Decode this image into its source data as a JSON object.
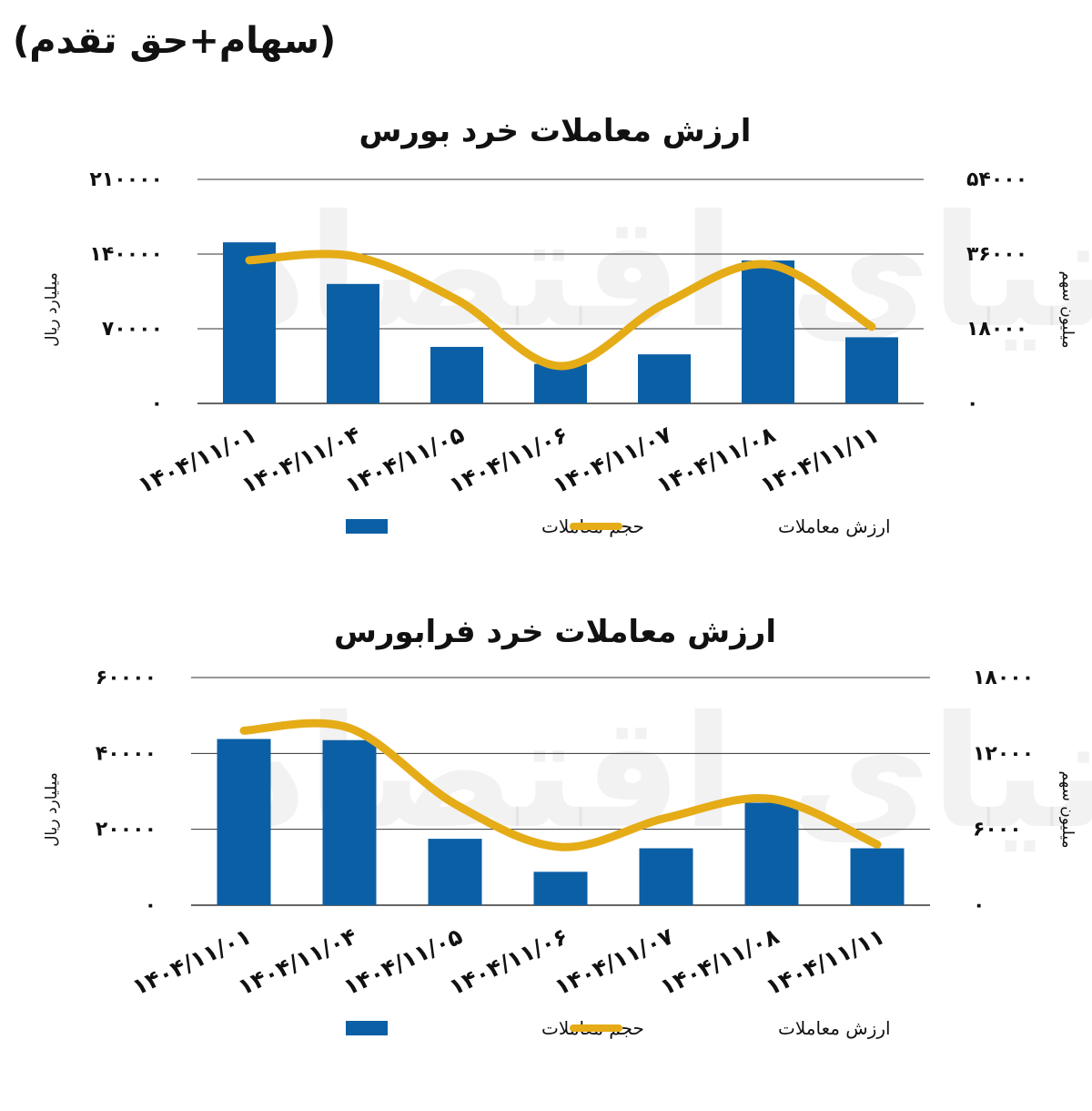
{
  "page_title": "(سهام+حق تقدم)",
  "watermark": "دنیای اقتصاد",
  "colors": {
    "bar": "#0b5fa5",
    "line": "#e5ac17",
    "grid": "#333333",
    "text": "#111111"
  },
  "chart_data": [
    {
      "type": "bar",
      "title": "ارزش معاملات خرد بورس",
      "categories": [
        "1404/11/01",
        "1404/11/04",
        "1404/11/05",
        "1404/11/06",
        "1404/11/07",
        "1404/11/08",
        "1404/11/11"
      ],
      "category_labels": [
        "۱۴۰۴/۱۱/۰۱",
        "۱۴۰۴/۱۱/۰۴",
        "۱۴۰۴/۱۱/۰۵",
        "۱۴۰۴/۱۱/۰۶",
        "۱۴۰۴/۱۱/۰۷",
        "۱۴۰۴/۱۱/۰۸",
        "۱۴۰۴/۱۱/۱۱"
      ],
      "ylabel_left": "میلیارد ریال",
      "ylabel_right": "میلیون سهم",
      "ylim_left": [
        0,
        210000
      ],
      "ylim_right": [
        0,
        54000
      ],
      "yticks_left": [
        0,
        70000,
        140000,
        210000
      ],
      "yticks_right": [
        0,
        18000,
        36000,
        54000
      ],
      "ytick_labels_left": [
        "۰",
        "۷۰۰۰۰",
        "۱۴۰۰۰۰",
        "۲۱۰۰۰۰"
      ],
      "ytick_labels_right": [
        "۰",
        "۱۸۰۰۰",
        "۳۶۰۰۰",
        "۵۴۰۰۰"
      ],
      "grid": true,
      "legend_position": "bottom",
      "series": [
        {
          "name": "حجم معاملات",
          "type": "bar",
          "axis": "left",
          "values": [
            151000,
            112000,
            53000,
            37000,
            46000,
            134000,
            62000
          ]
        },
        {
          "name": "ارزش معاملات",
          "type": "line",
          "axis": "right",
          "values": [
            34500,
            35500,
            25000,
            9000,
            24000,
            33500,
            18500
          ]
        }
      ]
    },
    {
      "type": "bar",
      "title": "ارزش معاملات خرد فرابورس",
      "categories": [
        "1404/11/01",
        "1404/11/04",
        "1404/11/05",
        "1404/11/06",
        "1404/11/07",
        "1404/11/08",
        "1404/11/11"
      ],
      "category_labels": [
        "۱۴۰۴/۱۱/۰۱",
        "۱۴۰۴/۱۱/۰۴",
        "۱۴۰۴/۱۱/۰۵",
        "۱۴۰۴/۱۱/۰۶",
        "۱۴۰۴/۱۱/۰۷",
        "۱۴۰۴/۱۱/۰۸",
        "۱۴۰۴/۱۱/۱۱"
      ],
      "ylabel_left": "میلیارد ریال",
      "ylabel_right": "میلیون سهم",
      "ylim_left": [
        0,
        60000
      ],
      "ylim_right": [
        0,
        18000
      ],
      "yticks_left": [
        0,
        20000,
        40000,
        60000
      ],
      "yticks_right": [
        0,
        6000,
        12000,
        18000
      ],
      "ytick_labels_left": [
        "۰",
        "۲۰۰۰۰",
        "۴۰۰۰۰",
        "۶۰۰۰۰"
      ],
      "ytick_labels_right": [
        "۰",
        "۶۰۰۰",
        "۱۲۰۰۰",
        "۱۸۰۰۰"
      ],
      "grid": true,
      "legend_position": "bottom",
      "series": [
        {
          "name": "حجم معاملات",
          "type": "bar",
          "axis": "left",
          "values": [
            43800,
            43500,
            17500,
            8800,
            15000,
            27000,
            15000
          ]
        },
        {
          "name": "ارزش معاملات",
          "type": "line",
          "axis": "right",
          "values": [
            13800,
            14000,
            8000,
            4600,
            6900,
            8400,
            4800
          ]
        }
      ]
    }
  ]
}
